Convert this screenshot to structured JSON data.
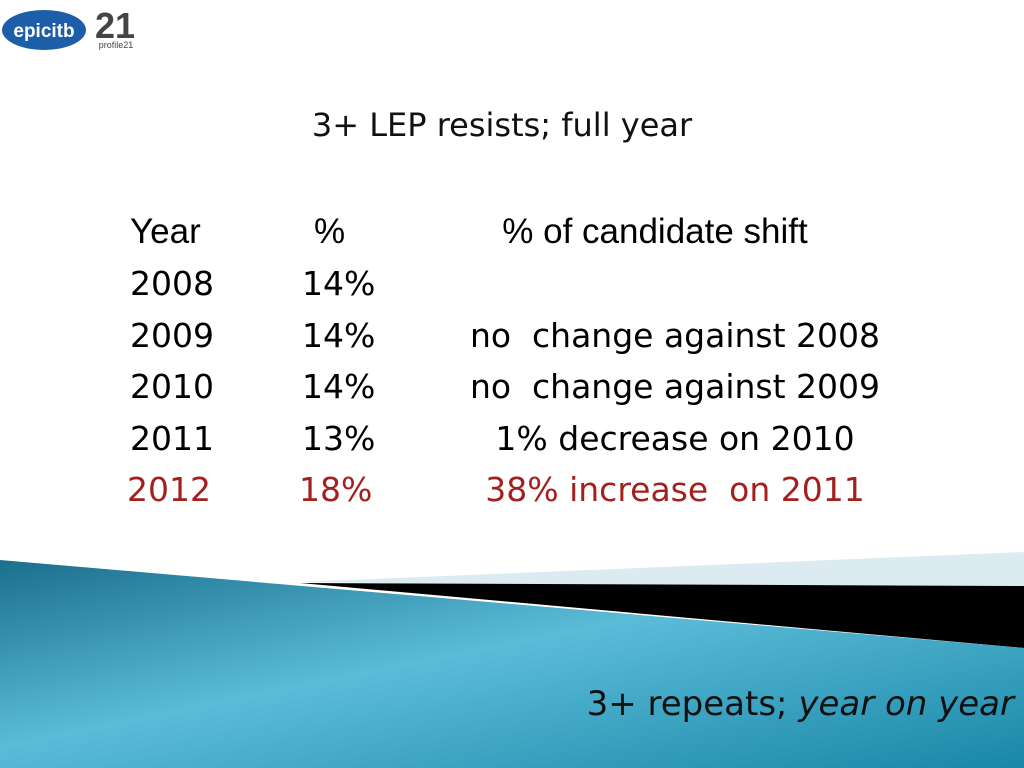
{
  "logos": {
    "epic": "epicitb",
    "profile_number": "21",
    "profile": "profile21"
  },
  "title": "3+ LEP resists; full year",
  "table": {
    "header": [
      "Year",
      "%",
      "% of candidate shift"
    ],
    "rows": [
      [
        "2008",
        "14%",
        null
      ],
      [
        "2009",
        "14%",
        "no  change against 2008"
      ],
      [
        "2010",
        "14%",
        "no  change against 2009"
      ],
      [
        "2011",
        "13%",
        "1% decrease on 2010"
      ],
      [
        "2012",
        "18%",
        "38% increase  on 2011"
      ]
    ],
    "highlight_row": 4
  },
  "footer": {
    "text": "3+ repeats; ",
    "emphasis": "year on year"
  }
}
